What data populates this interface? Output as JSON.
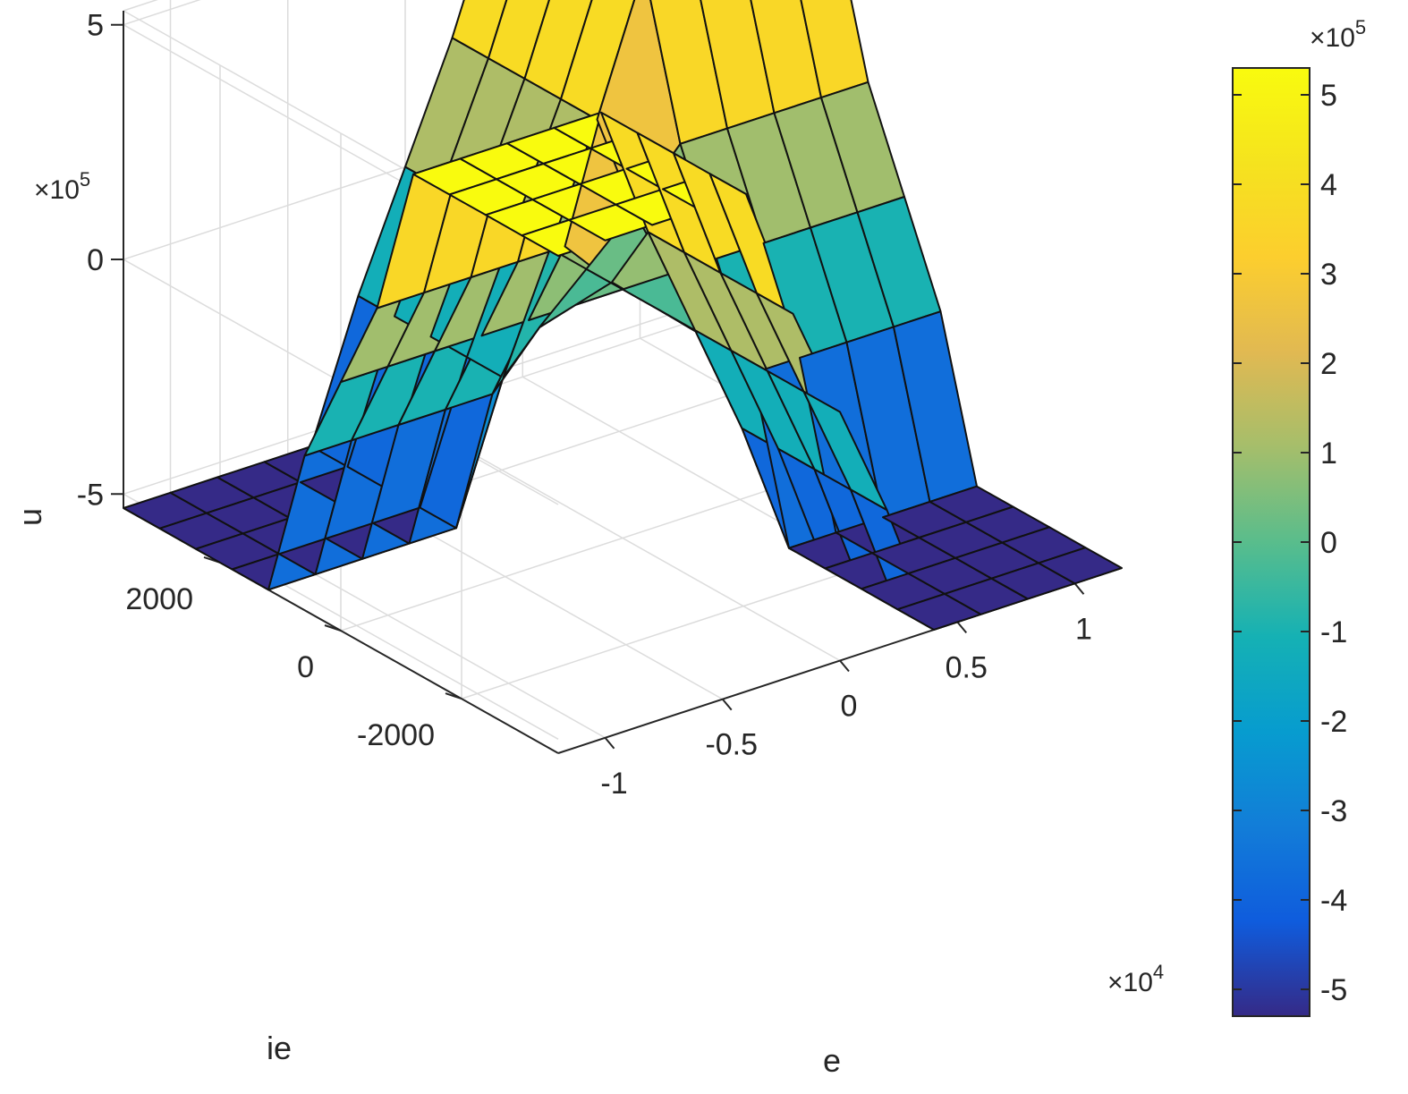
{
  "chart_data": {
    "type": "surface",
    "title": "",
    "xlabel": "e",
    "ylabel": "ie",
    "zlabel": "u",
    "x_exponent": "4",
    "z_exponent": "5",
    "colorbar_exponent": "5",
    "exponent_base": "×10",
    "x": [
      -1.2,
      -1.0,
      -0.8,
      -0.6,
      -0.4,
      -0.2,
      0.0,
      0.2,
      0.4,
      0.6,
      0.8,
      1.0,
      1.2
    ],
    "y": [
      -3600,
      -3000,
      -2400,
      -1800,
      -1200,
      -600,
      0,
      600,
      1200,
      1800,
      2400,
      3000,
      3600
    ],
    "surface_model": "u = 5.3e5 * s(x/0.35) * s(y/1200), s(t)=sign(t)*min(|t|^1.4,1), x in units of 1e4",
    "xlim": [
      -1.2,
      1.2
    ],
    "ylim": [
      -3600,
      3600
    ],
    "zlim": [
      -5.3,
      5.3
    ],
    "x_ticks": [
      "-1",
      "-0.5",
      "0",
      "0.5",
      "1"
    ],
    "y_ticks": [
      "-2000",
      "0",
      "2000"
    ],
    "z_ticks": [
      "-5",
      "0",
      "5"
    ],
    "colorbar": {
      "colormap": "parula",
      "range": [
        -5.3,
        5.3
      ],
      "ticks": [
        "5",
        "4",
        "3",
        "2",
        "1",
        "0",
        "-1",
        "-2",
        "-3",
        "-4",
        "-5"
      ]
    },
    "grid": true
  }
}
